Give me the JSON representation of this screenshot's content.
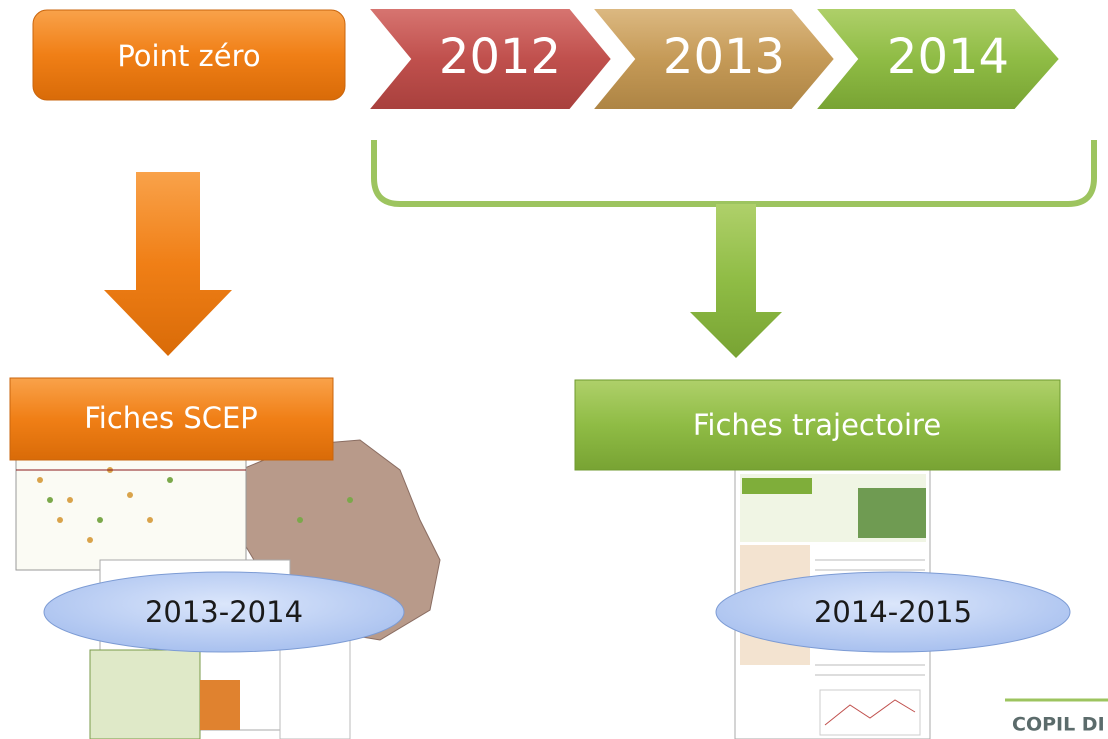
{
  "timeline": {
    "start": "Point zéro",
    "years": [
      "2012",
      "2013",
      "2014"
    ]
  },
  "outputs": [
    {
      "title": "Fiches SCEP",
      "period": "2013-2014"
    },
    {
      "title": "Fiches trajectoire",
      "period": "2014-2015"
    }
  ],
  "footer": "COPIL DI"
}
